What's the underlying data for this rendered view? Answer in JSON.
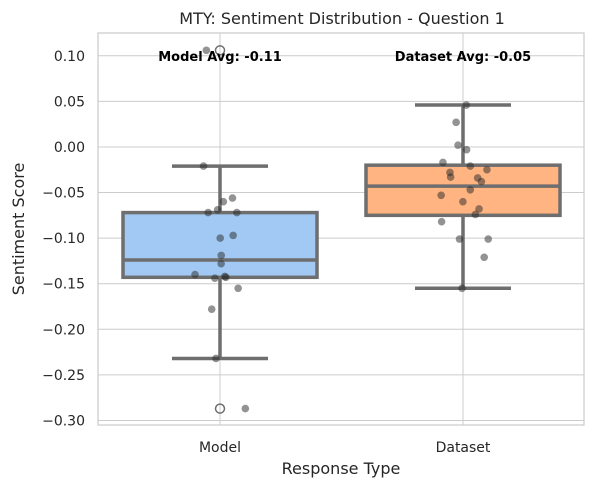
{
  "chart_data": {
    "type": "box",
    "title": "MTY: Sentiment Distribution - Question 1",
    "xlabel": "Response Type",
    "ylabel": "Sentiment Score",
    "ylim": [
      -0.305,
      0.125
    ],
    "yticks": [
      0.1,
      0.05,
      0.0,
      -0.05,
      -0.1,
      -0.15,
      -0.2,
      -0.25,
      -0.3
    ],
    "ytick_labels": [
      "0.10",
      "0.05",
      "0.00",
      "−0.05",
      "−0.10",
      "−0.15",
      "−0.20",
      "−0.25",
      "−0.30"
    ],
    "categories": [
      "Model",
      "Dataset"
    ],
    "grid": true,
    "boxes": [
      {
        "category": "Model",
        "color": "#a1c9f4",
        "whisker_low": -0.232,
        "q1": -0.143,
        "median": -0.124,
        "q3": -0.072,
        "whisker_high": -0.021,
        "outliers": [
          0.106,
          -0.287
        ],
        "points": [
          -0.021,
          -0.056,
          -0.06,
          -0.069,
          -0.072,
          -0.072,
          -0.097,
          -0.1,
          -0.119,
          -0.128,
          -0.14,
          -0.142,
          -0.143,
          -0.144,
          -0.155,
          -0.178,
          -0.232,
          0.106,
          -0.287
        ],
        "annotation": "Model Avg: -0.11"
      },
      {
        "category": "Dataset",
        "color": "#ffb482",
        "whisker_low": -0.155,
        "q1": -0.075,
        "median": -0.043,
        "q3": -0.02,
        "whisker_high": 0.046,
        "outliers": [],
        "points": [
          0.046,
          0.027,
          0.002,
          -0.003,
          -0.017,
          -0.021,
          -0.025,
          -0.028,
          -0.033,
          -0.034,
          -0.038,
          -0.047,
          -0.053,
          -0.06,
          -0.068,
          -0.074,
          -0.082,
          -0.101,
          -0.101,
          -0.121,
          -0.155
        ],
        "annotation": "Dataset Avg: -0.05"
      }
    ]
  }
}
